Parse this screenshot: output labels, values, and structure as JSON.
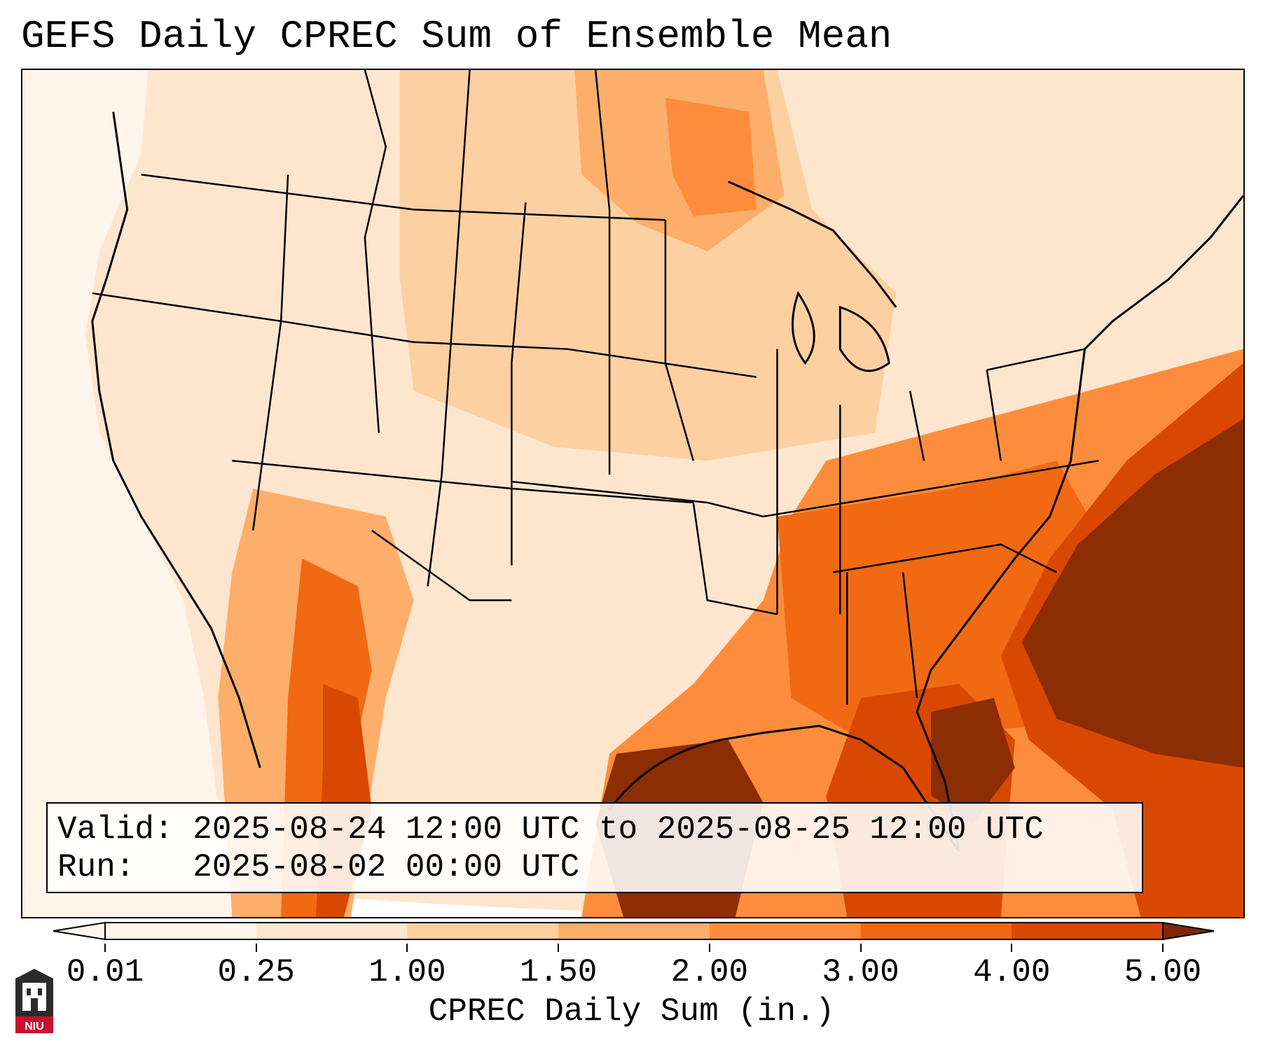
{
  "title": "GEFS Daily CPREC Sum of Ensemble Mean",
  "info": {
    "valid_label": "Valid:",
    "valid_value": "2025-08-24 12:00 UTC to 2025-08-25 12:00 UTC",
    "run_label": "Run:",
    "run_value": "2025-08-02 00:00 UTC"
  },
  "colorbar": {
    "label": "CPREC Daily Sum (in.)",
    "ticks": [
      "0.01",
      "0.25",
      "1.00",
      "1.50",
      "2.00",
      "3.00",
      "4.00",
      "5.00"
    ],
    "colors": [
      "#fff5eb",
      "#fee6ce",
      "#fdd0a2",
      "#fdae6b",
      "#fd8d3c",
      "#f16913",
      "#d94801",
      "#8c2d04"
    ],
    "under_color": "#fff5eb",
    "over_color": "#7f2704"
  },
  "map": {
    "region": "Contiguous United States",
    "palette": {
      "background": "#fff5eb",
      "light": "#fee6ce",
      "medium": "#fdd0a2",
      "orange": "#fdae6b",
      "strong": "#fd8d3c",
      "deep": "#f16913",
      "heavy": "#d94801",
      "max": "#8c2d04"
    }
  },
  "logo": {
    "text": "NIU",
    "color": "#c8102e"
  }
}
